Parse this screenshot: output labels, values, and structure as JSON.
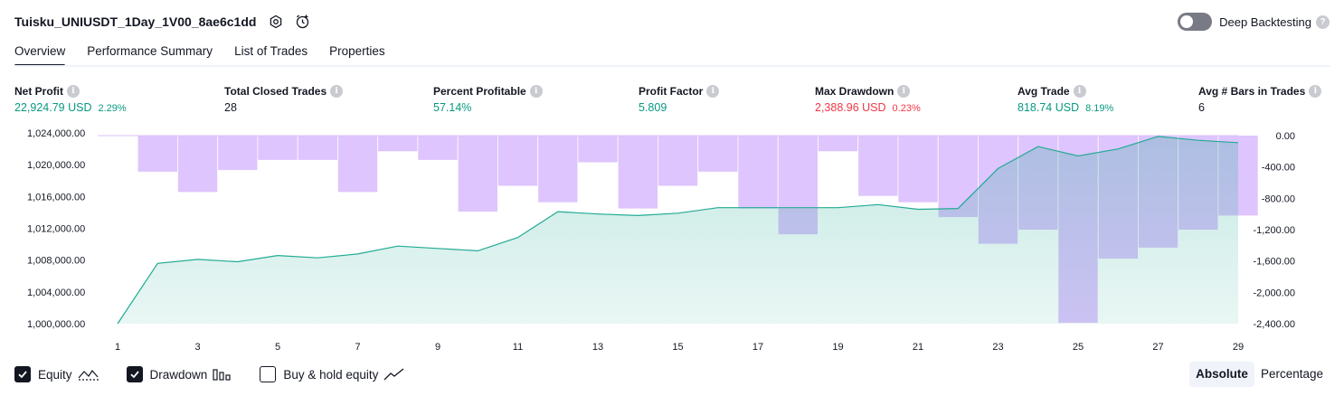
{
  "header": {
    "title": "Tuisku_UNIUSDT_1Day_1V00_8ae6c1dd",
    "deep_backtesting_label": "Deep Backtesting",
    "deep_backtesting_enabled": false,
    "icons": [
      "settings-icon",
      "alert-clock-icon",
      "help-icon"
    ]
  },
  "tabs": [
    {
      "label": "Overview",
      "active": true
    },
    {
      "label": "Performance Summary",
      "active": false
    },
    {
      "label": "List of Trades",
      "active": false
    },
    {
      "label": "Properties",
      "active": false
    }
  ],
  "stats": {
    "net_profit": {
      "label": "Net Profit",
      "value": "22,924.79 USD",
      "pct": "2.29%"
    },
    "total_closed_trades": {
      "label": "Total Closed Trades",
      "value": "28"
    },
    "percent_profitable": {
      "label": "Percent Profitable",
      "value": "57.14%"
    },
    "profit_factor": {
      "label": "Profit Factor",
      "value": "5.809"
    },
    "max_drawdown": {
      "label": "Max Drawdown",
      "value": "2,388.96 USD",
      "pct": "0.23%"
    },
    "avg_trade": {
      "label": "Avg Trade",
      "value": "818.74 USD",
      "pct": "8.19%"
    },
    "avg_bars": {
      "label": "Avg # Bars in Trades",
      "value": "6"
    }
  },
  "colors": {
    "positive": "#089981",
    "negative": "#f23645",
    "equity_line": "#22ab94",
    "drawdown_bar": "#dcc2fd"
  },
  "chart_data": {
    "type": "area",
    "x": [
      1,
      2,
      3,
      4,
      5,
      6,
      7,
      8,
      9,
      10,
      11,
      12,
      13,
      14,
      15,
      16,
      17,
      18,
      19,
      20,
      21,
      22,
      23,
      24,
      25,
      26,
      27,
      28,
      29
    ],
    "x_tick_labels": [
      "1",
      "3",
      "5",
      "7",
      "9",
      "11",
      "13",
      "15",
      "17",
      "19",
      "21",
      "23",
      "25",
      "27",
      "29"
    ],
    "left_axis": {
      "ticks": [
        "1,024,000.00",
        "1,020,000.00",
        "1,016,000.00",
        "1,012,000.00",
        "1,008,000.00",
        "1,004,000.00",
        "1,000,000.00"
      ],
      "ylim": [
        1000000,
        1024000
      ]
    },
    "right_axis": {
      "ticks": [
        "0.00",
        "-400.00",
        "-800.00",
        "-1,200.00",
        "-1,600.00",
        "-2,000.00",
        "-2,400.00"
      ],
      "ylim": [
        -2400,
        0
      ]
    },
    "series": [
      {
        "name": "Equity",
        "type": "area",
        "axis": "left",
        "values": [
          1000000,
          1007700,
          1008200,
          1007900,
          1008700,
          1008400,
          1008900,
          1009900,
          1009600,
          1009300,
          1011000,
          1014300,
          1014000,
          1013800,
          1014100,
          1014800,
          1014800,
          1014800,
          1014800,
          1015200,
          1014600,
          1014700,
          1019800,
          1022600,
          1021400,
          1022300,
          1023900,
          1023400,
          1023100
        ]
      },
      {
        "name": "Drawdown",
        "type": "bar",
        "axis": "right",
        "values": [
          0,
          -460,
          -720,
          -440,
          -310,
          -310,
          -720,
          -200,
          -310,
          -970,
          -640,
          -850,
          -340,
          -930,
          -640,
          -460,
          -930,
          -1260,
          -200,
          -770,
          -850,
          -1040,
          -1380,
          -1200,
          -2390,
          -1570,
          -1430,
          -1200,
          -1020
        ]
      }
    ],
    "legend": [
      {
        "label": "Equity",
        "checked": true
      },
      {
        "label": "Drawdown",
        "checked": true
      },
      {
        "label": "Buy & hold equity",
        "checked": false
      }
    ],
    "grid": false
  },
  "mode": {
    "absolute_label": "Absolute",
    "percentage_label": "Percentage",
    "selected": "Absolute"
  }
}
